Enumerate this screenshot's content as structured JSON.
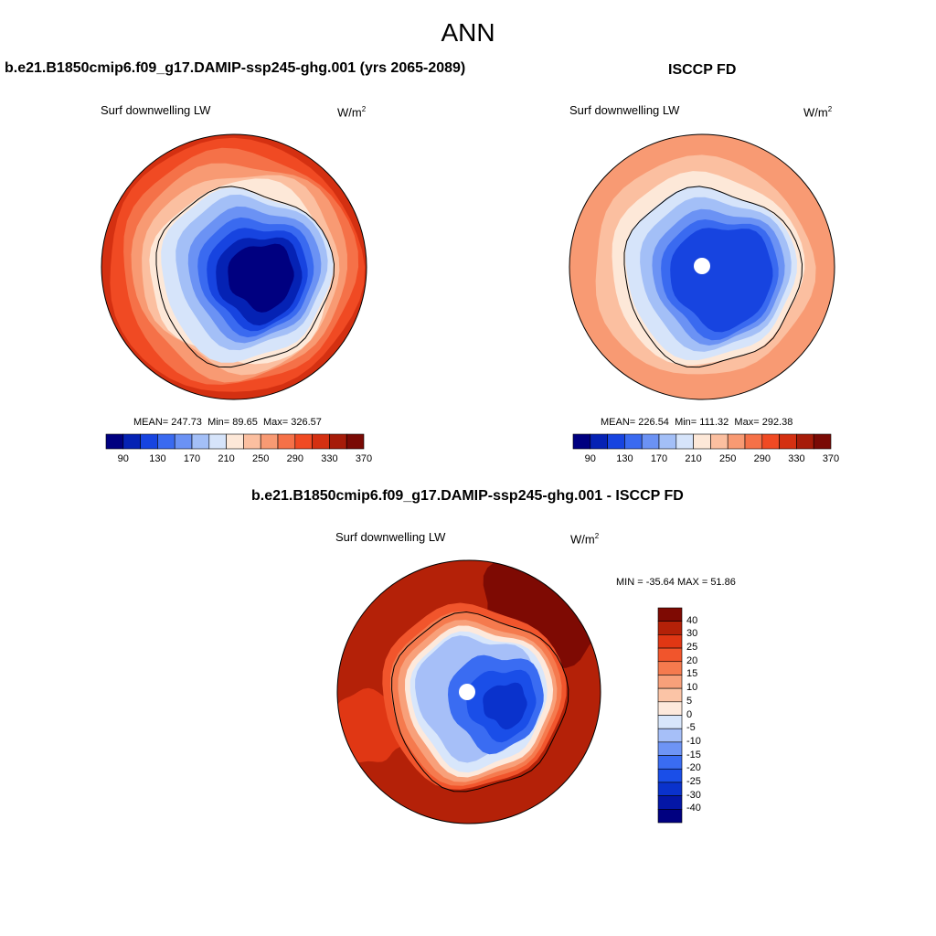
{
  "title": "ANN",
  "colors": {
    "abs_scale": [
      "#000080",
      "#0522b4",
      "#1744e0",
      "#3a6af0",
      "#6b92f4",
      "#a3bff7",
      "#d6e4fa",
      "#fde8d8",
      "#fbbfa0",
      "#f89a73",
      "#f57148",
      "#f04a23",
      "#d43011",
      "#a61c09",
      "#7a0a05"
    ],
    "diff_scale": [
      "#000080",
      "#0416a6",
      "#0a32cc",
      "#1a4ee8",
      "#3a6cf2",
      "#6e94f5",
      "#a6bff8",
      "#d8e6fb",
      "#fde9dc",
      "#fbc4a6",
      "#f8a07a",
      "#f57a4e",
      "#f1552c",
      "#e03714",
      "#b42108",
      "#7e0a03"
    ],
    "coast": "#000000"
  },
  "panel_model": {
    "case_title": "b.e21.B1850cmip6.f09_g17.DAMIP-ssp245-ghg.001 (yrs 2065-2089)",
    "variable": "Surf downwelling LW",
    "units_base": "W/m",
    "units_exp": "2",
    "stats": {
      "mean_label": "MEAN=",
      "mean": "247.73",
      "min_label": "Min=",
      "min": "89.65",
      "max_label": "Max=",
      "max": "326.57"
    },
    "colorbar_ticks": [
      "90",
      "130",
      "170",
      "210",
      "250",
      "290",
      "330",
      "370"
    ]
  },
  "panel_obs": {
    "case_title": "ISCCP FD",
    "variable": "Surf downwelling LW",
    "units_base": "W/m",
    "units_exp": "2",
    "stats": {
      "mean_label": "MEAN=",
      "mean": "226.54",
      "min_label": "Min=",
      "min": "111.32",
      "max_label": "Max=",
      "max": "292.38"
    },
    "colorbar_ticks": [
      "90",
      "130",
      "170",
      "210",
      "250",
      "290",
      "330",
      "370"
    ]
  },
  "panel_diff": {
    "case_title": "b.e21.B1850cmip6.f09_g17.DAMIP-ssp245-ghg.001 - ISCCP FD",
    "variable": "Surf downwelling LW",
    "units_base": "W/m",
    "units_exp": "2",
    "range_text": "MIN = -35.64 MAX =  51.86",
    "colorbar_ticks": [
      "40",
      "30",
      "25",
      "20",
      "15",
      "10",
      "5",
      "0",
      "-5",
      "-10",
      "-15",
      "-20",
      "-25",
      "-30",
      "-40"
    ]
  }
}
